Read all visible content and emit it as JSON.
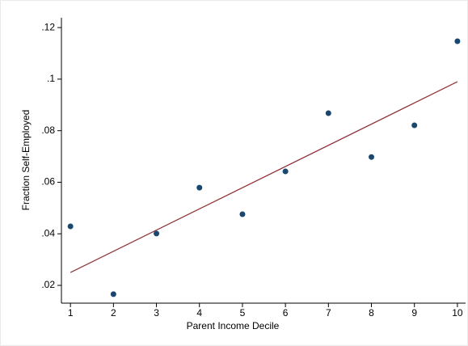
{
  "chart_data": {
    "type": "scatter",
    "xlabel": "Parent Income Decile",
    "ylabel": "Fraction Self-Employed",
    "series": [
      {
        "type": "scatter",
        "color": "#1a476f",
        "x": [
          1,
          2,
          3,
          4,
          5,
          6,
          7,
          8,
          9,
          10
        ],
        "values": [
          0.0429,
          0.0166,
          0.0401,
          0.0579,
          0.0476,
          0.0642,
          0.0868,
          0.0698,
          0.0821,
          0.1147
        ]
      },
      {
        "type": "line",
        "color": "#90353b",
        "x": [
          1,
          10
        ],
        "values": [
          0.025,
          0.099
        ]
      }
    ],
    "xlim": [
      0.79,
      10.19
    ],
    "ylim": [
      0.0131,
      0.1238
    ],
    "xticks": [
      1,
      2,
      3,
      4,
      5,
      6,
      7,
      8,
      9,
      10
    ],
    "yticks": [
      {
        "value": 0.02,
        "label": ".02"
      },
      {
        "value": 0.04,
        "label": ".04"
      },
      {
        "value": 0.06,
        "label": ".06"
      },
      {
        "value": 0.08,
        "label": ".08"
      },
      {
        "value": 0.1,
        "label": ".1"
      },
      {
        "value": 0.12,
        "label": ".12"
      }
    ],
    "grid": false
  }
}
